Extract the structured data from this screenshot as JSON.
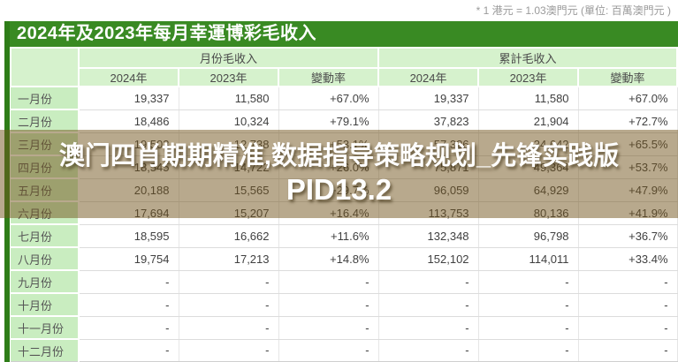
{
  "note": "* 1 港元 = 1.03澳門元 (單位: 百萬澳門元 )",
  "title": "2024年及2023年每月幸運博彩毛收入",
  "table": {
    "group_headers": [
      {
        "label": "月份毛收入"
      },
      {
        "label": "累計毛收入"
      }
    ],
    "sub_headers": [
      "2024年",
      "2023年",
      "變動率",
      "2024年",
      "2023年",
      "變動率"
    ],
    "rows": [
      {
        "month": "一月份",
        "cells": [
          "19,337",
          "11,580",
          "+67.0%",
          "19,337",
          "11,580",
          "+67.0%"
        ]
      },
      {
        "month": "二月份",
        "cells": [
          "18,486",
          "10,324",
          "+79.1%",
          "37,823",
          "21,904",
          "+72.7%"
        ]
      },
      {
        "month": "三月份",
        "cells": [
          "19,503",
          "12,738",
          "+53.1%",
          "57,326",
          "34,642",
          "+65.5%"
        ]
      },
      {
        "month": "四月份",
        "cells": [
          "18,545",
          "14,722",
          "+26.0%",
          "75,871",
          "49,364",
          "+53.7%"
        ]
      },
      {
        "month": "五月份",
        "cells": [
          "20,188",
          "15,565",
          "+29.7%",
          "96,059",
          "64,929",
          "+47.9%"
        ]
      },
      {
        "month": "六月份",
        "cells": [
          "17,694",
          "15,207",
          "+16.4%",
          "113,753",
          "80,136",
          "+41.9%"
        ]
      },
      {
        "month": "七月份",
        "cells": [
          "18,595",
          "16,662",
          "+11.6%",
          "132,348",
          "96,798",
          "+36.7%"
        ]
      },
      {
        "month": "八月份",
        "cells": [
          "19,754",
          "17,213",
          "+14.8%",
          "152,102",
          "114,011",
          "+33.4%"
        ]
      },
      {
        "month": "九月份",
        "cells": [
          "-",
          "-",
          "-",
          "-",
          "-",
          "-"
        ]
      },
      {
        "month": "十月份",
        "cells": [
          "-",
          "-",
          "-",
          "-",
          "-",
          "-"
        ]
      },
      {
        "month": "十一月份",
        "cells": [
          "-",
          "-",
          "-",
          "-",
          "-",
          "-"
        ]
      },
      {
        "month": "十二月份",
        "cells": [
          "-",
          "-",
          "-",
          "-",
          "-",
          "-"
        ]
      }
    ]
  },
  "overlay": {
    "line1": "澳门四肖期期精准,数据指导策略规划_先锋实践版",
    "line2": "PID13.2"
  },
  "colors": {
    "title_bar": "#398a23",
    "left_strip": "#2e7d18",
    "header_bg": "#d6f2cd",
    "label_bg": "#c9edc0",
    "overlay_tint": "rgba(113,84,28,0.5)",
    "overlay_text": "#ffffff"
  },
  "chart_data": {
    "type": "table",
    "title": "2024年及2023年每月幸運博彩毛收入",
    "unit_note": "* 1 港元 = 1.03澳門元 (單位: 百萬澳門元 )",
    "column_groups": [
      "月份毛收入",
      "累計毛收入"
    ],
    "columns": [
      "月份",
      "月份毛收入 2024年",
      "月份毛收入 2023年",
      "月份毛收入 變動率",
      "累計毛收入 2024年",
      "累計毛收入 2023年",
      "累計毛收入 變動率"
    ],
    "rows": [
      [
        "一月份",
        19337,
        11580,
        "+67.0%",
        19337,
        11580,
        "+67.0%"
      ],
      [
        "二月份",
        18486,
        10324,
        "+79.1%",
        37823,
        21904,
        "+72.7%"
      ],
      [
        "三月份",
        19503,
        12738,
        "+53.1%",
        57326,
        34642,
        "+65.5%"
      ],
      [
        "四月份",
        18545,
        14722,
        "+26.0%",
        75871,
        49364,
        "+53.7%"
      ],
      [
        "五月份",
        20188,
        15565,
        "+29.7%",
        96059,
        64929,
        "+47.9%"
      ],
      [
        "六月份",
        17694,
        15207,
        "+16.4%",
        113753,
        80136,
        "+41.9%"
      ],
      [
        "七月份",
        18595,
        16662,
        "+11.6%",
        132348,
        96798,
        "+36.7%"
      ],
      [
        "八月份",
        19754,
        17213,
        "+14.8%",
        152102,
        114011,
        "+33.4%"
      ],
      [
        "九月份",
        null,
        null,
        null,
        null,
        null,
        null
      ],
      [
        "十月份",
        null,
        null,
        null,
        null,
        null,
        null
      ],
      [
        "十一月份",
        null,
        null,
        null,
        null,
        null,
        null
      ],
      [
        "十二月份",
        null,
        null,
        null,
        null,
        null,
        null
      ]
    ]
  }
}
